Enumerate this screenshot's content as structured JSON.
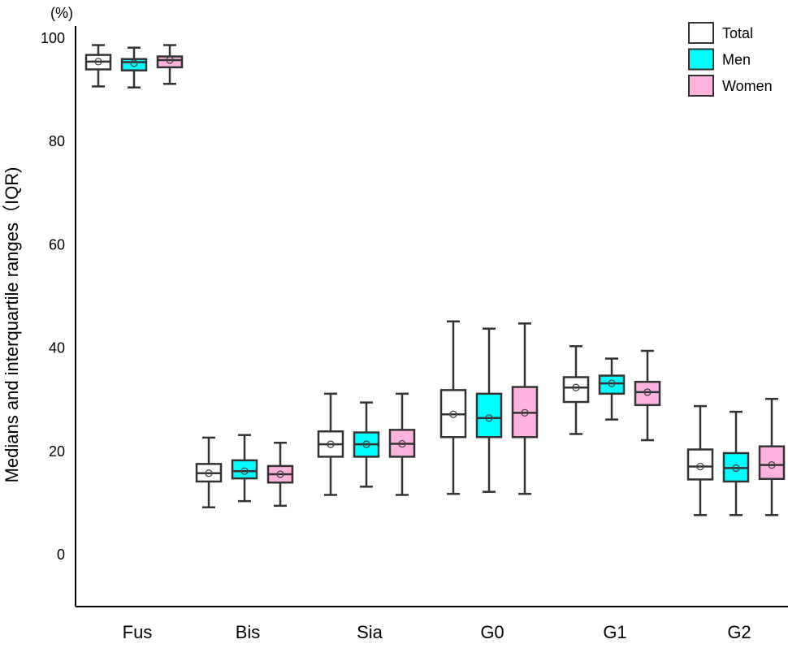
{
  "chart_data": {
    "type": "boxplot",
    "ylabel": "Medians and interquartile ranges（IQR)",
    "yunit": "(%)",
    "ylim": [
      -10,
      102
    ],
    "yticks": [
      0,
      20,
      40,
      60,
      80,
      100
    ],
    "grid": false,
    "legend_position": "top-right",
    "categories": [
      "Fus",
      "Bis",
      "Sia",
      "G0",
      "G1",
      "G2"
    ],
    "series": [
      {
        "name": "Total",
        "color": "#ffffff",
        "boxes": [
          {
            "whisker_low": 90.5,
            "q1": 93.8,
            "median": 95.3,
            "q3": 96.6,
            "whisker_high": 98.5,
            "mean": 95.3
          },
          {
            "whisker_low": 9.0,
            "q1": 14.0,
            "median": 15.6,
            "q3": 17.4,
            "whisker_high": 22.5,
            "mean": 15.6
          },
          {
            "whisker_low": 11.4,
            "q1": 18.8,
            "median": 21.2,
            "q3": 23.7,
            "whisker_high": 31.0,
            "mean": 21.2
          },
          {
            "whisker_low": 11.6,
            "q1": 22.6,
            "median": 27.0,
            "q3": 31.7,
            "whisker_high": 45.0,
            "mean": 27.0
          },
          {
            "whisker_low": 23.2,
            "q1": 29.4,
            "median": 32.2,
            "q3": 34.2,
            "whisker_high": 40.2,
            "mean": 32.2
          },
          {
            "whisker_low": 7.5,
            "q1": 14.4,
            "median": 16.9,
            "q3": 20.2,
            "whisker_high": 28.6,
            "mean": 16.9
          }
        ]
      },
      {
        "name": "Men",
        "color": "#00ffff",
        "boxes": [
          {
            "whisker_low": 90.3,
            "q1": 93.6,
            "median": 95.2,
            "q3": 95.8,
            "whisker_high": 98.0,
            "mean": 95.0
          },
          {
            "whisker_low": 10.2,
            "q1": 14.6,
            "median": 16.0,
            "q3": 18.1,
            "whisker_high": 23.0,
            "mean": 16.0
          },
          {
            "whisker_low": 13.0,
            "q1": 18.8,
            "median": 21.2,
            "q3": 23.5,
            "whisker_high": 29.3,
            "mean": 21.2
          },
          {
            "whisker_low": 12.0,
            "q1": 22.6,
            "median": 26.3,
            "q3": 31.0,
            "whisker_high": 43.6,
            "mean": 26.3
          },
          {
            "whisker_low": 26.0,
            "q1": 31.0,
            "median": 33.0,
            "q3": 34.5,
            "whisker_high": 37.8,
            "mean": 33.0
          },
          {
            "whisker_low": 7.5,
            "q1": 14.0,
            "median": 16.6,
            "q3": 19.5,
            "whisker_high": 27.5,
            "mean": 16.6
          }
        ]
      },
      {
        "name": "Women",
        "color": "#ffb3de",
        "boxes": [
          {
            "whisker_low": 91.0,
            "q1": 94.2,
            "median": 95.6,
            "q3": 96.3,
            "whisker_high": 98.5,
            "mean": 95.6
          },
          {
            "whisker_low": 9.3,
            "q1": 13.8,
            "median": 15.4,
            "q3": 17.0,
            "whisker_high": 21.5,
            "mean": 15.4
          },
          {
            "whisker_low": 11.4,
            "q1": 18.8,
            "median": 21.3,
            "q3": 24.0,
            "whisker_high": 31.0,
            "mean": 21.3
          },
          {
            "whisker_low": 11.6,
            "q1": 22.6,
            "median": 27.3,
            "q3": 32.3,
            "whisker_high": 44.6,
            "mean": 27.3
          },
          {
            "whisker_low": 22.0,
            "q1": 28.8,
            "median": 31.3,
            "q3": 33.3,
            "whisker_high": 39.3,
            "mean": 31.3
          },
          {
            "whisker_low": 7.5,
            "q1": 14.5,
            "median": 17.2,
            "q3": 20.8,
            "whisker_high": 30.0,
            "mean": 17.2
          }
        ]
      }
    ]
  }
}
